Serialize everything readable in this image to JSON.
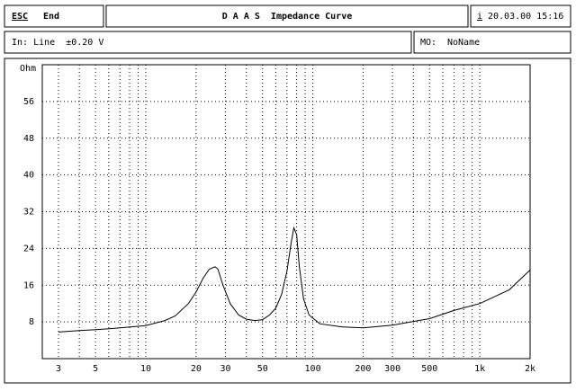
{
  "header": {
    "escape_key": "ESC",
    "escape_action": "End",
    "title": "D A A S  Impedance Curve",
    "info_key": "i",
    "timestamp": "20.03.00 15:16"
  },
  "status": {
    "input": "In: Line  ±0.20 V",
    "memory_key": "MO:",
    "memory_name": "NoName"
  },
  "chart_data": {
    "type": "line",
    "y_label": "Ohm",
    "log_x": true,
    "grid": true,
    "xlim": [
      2.4,
      2000
    ],
    "ylim": [
      0,
      64
    ],
    "yticks": [
      8,
      16,
      24,
      32,
      40,
      48,
      56
    ],
    "xticks": [
      3,
      5,
      10,
      20,
      30,
      50,
      100,
      200,
      300,
      500,
      {
        "value": 1000,
        "label": "1k"
      },
      {
        "value": 2000,
        "label": "2k"
      }
    ],
    "xgrid_minor": [
      4,
      6,
      7,
      8,
      9,
      40,
      60,
      70,
      80,
      90,
      400,
      600,
      700,
      800,
      900
    ],
    "series": [
      {
        "color": "#000000",
        "x": [
          3,
          4,
          5,
          7,
          10,
          13,
          15,
          18,
          20,
          22,
          24,
          26,
          27,
          29,
          32,
          36,
          40,
          45,
          50,
          55,
          60,
          65,
          70,
          74,
          77,
          80,
          83,
          88,
          95,
          110,
          150,
          200,
          300,
          500,
          700,
          1000,
          1500,
          2000
        ],
        "values": [
          5.8,
          6.1,
          6.3,
          6.7,
          7.2,
          8.3,
          9.3,
          12,
          14.5,
          17.5,
          19.5,
          20,
          19.5,
          16,
          12,
          9.5,
          8.6,
          8.3,
          8.5,
          9.5,
          11,
          14,
          19,
          25,
          28.5,
          27,
          20,
          13,
          9.5,
          7.6,
          6.9,
          6.7,
          7.3,
          8.7,
          10.5,
          12,
          15,
          19.3
        ]
      }
    ]
  }
}
